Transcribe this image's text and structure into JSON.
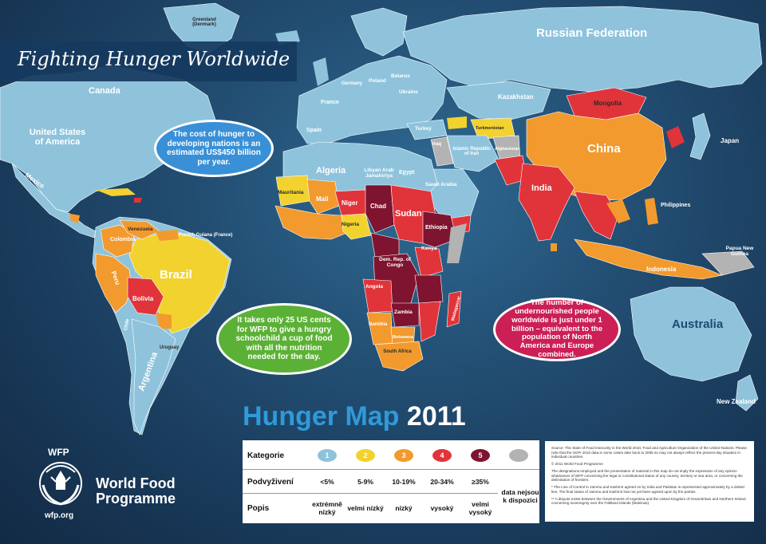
{
  "title": "Fighting Hunger Worldwide",
  "map_title": {
    "part1": "Hunger Map",
    "part2": "2011"
  },
  "bubbles": {
    "cost": "The cost of hunger to developing nations is an estimated US$450 billion per year.",
    "school": "It takes only 25 US cents for WFP to give a hungry schoolchild a cup of food with all the nutrition needed for the day.",
    "undernourished": "The number of undernourished people worldwide is just under 1 billion – equivalent to the population of North America and Europe combined."
  },
  "countries": {
    "russia": "Russian Federation",
    "canada": "Canada",
    "usa": "United States of America",
    "mexico": "Mexico",
    "greenland": "Greenland (Denmark)",
    "kazakhstan": "Kazakhstan",
    "mongolia": "Mongolia",
    "china": "China",
    "japan": "Japan",
    "india": "India",
    "philippines": "Philippines",
    "indonesia": "Indonesia",
    "png": "Papua New Guinea",
    "australia": "Australia",
    "nz": "New Zealand",
    "brazil": "Brazil",
    "bolivia": "Bolivia",
    "peru": "Peru",
    "colombia": "Colombia",
    "venezuela": "Venezuela",
    "argentina": "Argentina",
    "chile": "Chile",
    "uruguay": "Uruguay",
    "french_guiana": "French Guiana (France)",
    "algeria": "Algeria",
    "libya": "Libyan Arab Jamahiriya",
    "egypt": "Egypt",
    "sudan": "Sudan",
    "chad": "Chad",
    "niger": "Niger",
    "mali": "Mali",
    "mauritania": "Mauritania",
    "nigeria": "Nigeria",
    "ethiopia": "Ethiopia",
    "kenya": "Kenya",
    "drc": "Dem. Rep. of Congo",
    "angola": "Angola",
    "zambia": "Zambia",
    "namibia": "Namibia",
    "botswana": "Botswana",
    "south_africa": "South Africa",
    "madagascar": "Madagascar",
    "saudi": "Saudi Arabia",
    "iran": "Islamic Republic of Iran",
    "iraq": "Iraq",
    "turkey": "Turkey",
    "afghanistan": "Afghanistan",
    "turkmenistan": "Turkmenistan",
    "ukraine": "Ukraine",
    "france": "France",
    "spain": "Spain",
    "poland": "Poland",
    "germany": "Germany",
    "belarus": "Belarus"
  },
  "legend": {
    "row_labels": [
      "Kategorie",
      "Podvyživení",
      "Popis"
    ],
    "categories": [
      {
        "num": "1",
        "color": "#8fc3dc",
        "pct": "<5%",
        "desc": "extrémně nízký"
      },
      {
        "num": "2",
        "color": "#f2d22f",
        "pct": "5-9%",
        "desc": "velmi nízký"
      },
      {
        "num": "3",
        "color": "#f29a2e",
        "pct": "10-19%",
        "desc": "nízký"
      },
      {
        "num": "4",
        "color": "#e0343a",
        "pct": "20-34%",
        "desc": "vysoký"
      },
      {
        "num": "5",
        "color": "#7e1430",
        "pct": "≥35%",
        "desc": "velmi vysoký"
      },
      {
        "num": "",
        "color": "#b3b3b3",
        "pct": "data nejsou k dispozici",
        "desc": ""
      }
    ]
  },
  "source_notes": [
    "Source: The State of Food Insecurity in the World 2010, Food and Agriculture Organization of the United Nations. Please note that the SOFI 2010 data in some cases date back to 2005 so may not always reflect the present-day situation in individual countries.",
    "© 2011 World Food Programme",
    "The designations employed and the presentation of material in this map do not imply the expression of any opinion whatsoever of WFP concerning the legal or constitutional status of any country, territory or sea area, or concerning the delimitation of frontiers.",
    "* The Line of Control in Jammu and Kashmir agreed on by India and Pakistan is represented approximately by a dotted line. The final status of Jammu and Kashmir has not yet been agreed upon by the parties.",
    "** A dispute exists between the Governments of Argentina and the United Kingdom of Great Britain and Northern Ireland concerning sovereignty over the Falkland Islands (Malvinas)."
  ],
  "org": {
    "short": "WFP",
    "name_line1": "World Food",
    "name_line2": "Programme",
    "url": "wfp.org"
  }
}
